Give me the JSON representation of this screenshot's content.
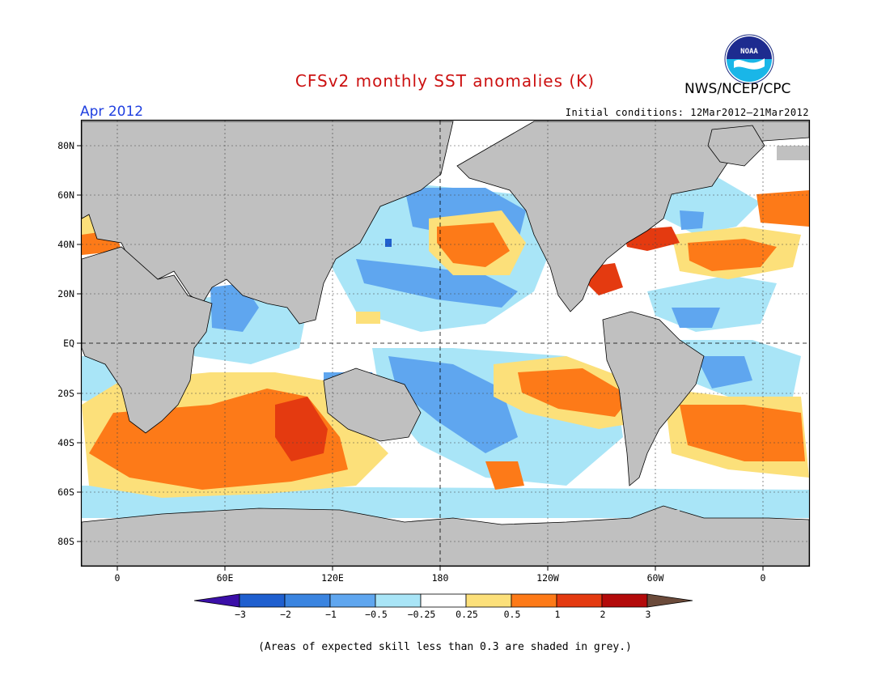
{
  "header": {
    "title": "CFSv2 monthly SST anomalies (K)",
    "agency": "NWS/NCEP/CPC",
    "forecast_month": "Apr 2012",
    "initial_conditions": "Initial conditions: 12Mar2012–21Mar2012"
  },
  "map": {
    "lat_labels": [
      "80N",
      "60N",
      "40N",
      "20N",
      "EQ",
      "20S",
      "40S",
      "60S",
      "80S"
    ],
    "lon_labels": [
      "0",
      "60E",
      "120E",
      "180",
      "120W",
      "60W",
      "0"
    ],
    "land_color": "#c0c0c0",
    "low_skill_color": "#c0c0c0"
  },
  "colorbar": {
    "labels": [
      "−3",
      "−2",
      "−1",
      "−0.5",
      "−0.25",
      "0.25",
      "0.5",
      "1",
      "2",
      "3"
    ],
    "colors": [
      "#3b0fa8",
      "#1f5fcf",
      "#3a84e0",
      "#5fa6ef",
      "#a9e5f7",
      "#ffffff",
      "#fce07a",
      "#fd7a18",
      "#e43a10",
      "#b30a0a",
      "#6b4a3a"
    ]
  },
  "footnote": "(Areas of expected skill less than 0.3 are shaded in grey.)"
}
